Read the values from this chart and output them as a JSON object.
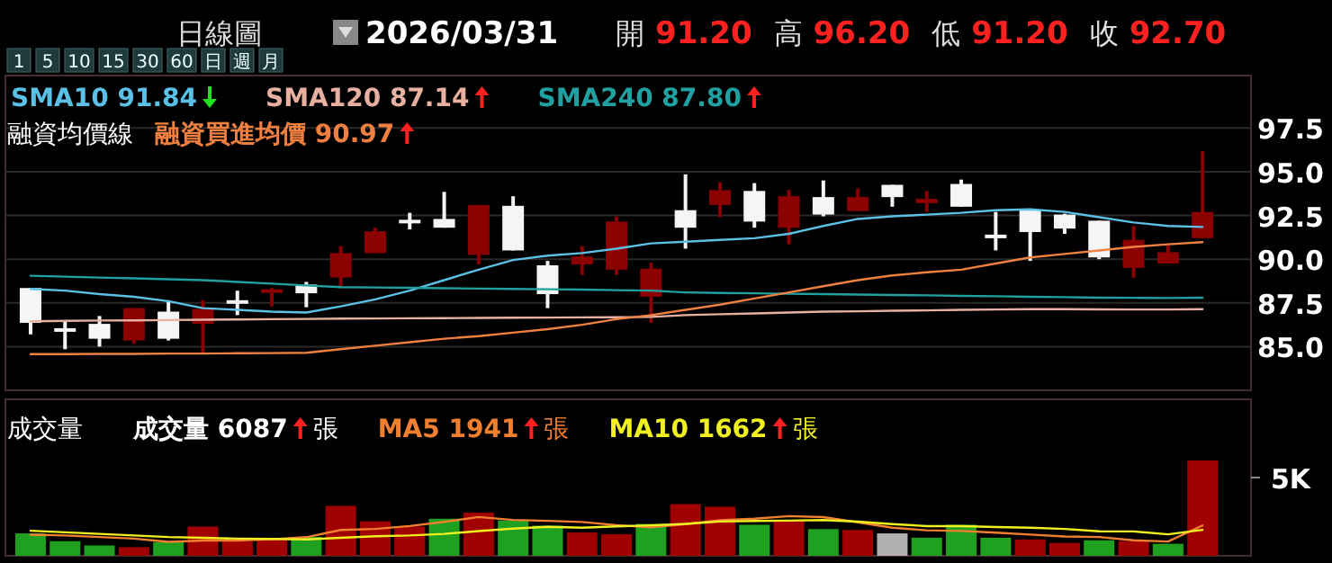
{
  "chart_data": [
    {
      "type": "candlestick",
      "categories": [
        null,
        null,
        null,
        null,
        null,
        null,
        null,
        null,
        null,
        null,
        null,
        null,
        null,
        null,
        null,
        null,
        null,
        null,
        null,
        null,
        null,
        null,
        null,
        null,
        null,
        null,
        null,
        null,
        null,
        null,
        null,
        null,
        null,
        null,
        null
      ],
      "ohlc": [
        [
          88.35,
          88.35,
          85.7,
          86.36
        ],
        [
          85.95,
          86.45,
          84.85,
          85.95
        ],
        [
          86.3,
          86.75,
          85.0,
          85.45
        ],
        [
          85.35,
          87.2,
          85.15,
          87.2
        ],
        [
          87.0,
          87.65,
          85.35,
          85.45
        ],
        [
          86.3,
          87.65,
          84.65,
          87.15
        ],
        [
          87.55,
          88.2,
          86.8,
          87.55
        ],
        [
          88.1,
          88.35,
          87.3,
          88.25
        ],
        [
          88.55,
          88.7,
          87.25,
          88.05
        ],
        [
          88.95,
          90.75,
          88.35,
          90.35
        ],
        [
          90.35,
          91.8,
          90.35,
          91.6
        ],
        [
          92.15,
          92.65,
          91.7,
          92.15
        ],
        [
          92.3,
          93.85,
          91.8,
          91.8
        ],
        [
          90.25,
          93.1,
          89.7,
          93.1
        ],
        [
          93.05,
          93.6,
          90.5,
          90.5
        ],
        [
          89.65,
          89.9,
          87.2,
          88.0
        ],
        [
          89.7,
          90.75,
          89.1,
          90.15
        ],
        [
          89.4,
          92.45,
          89.1,
          92.15
        ],
        [
          87.85,
          89.8,
          86.35,
          89.45
        ],
        [
          92.8,
          94.85,
          90.6,
          91.8
        ],
        [
          93.1,
          94.4,
          92.4,
          93.95
        ],
        [
          93.9,
          94.35,
          91.8,
          92.15
        ],
        [
          91.8,
          93.95,
          90.85,
          93.6
        ],
        [
          93.55,
          94.5,
          92.45,
          92.55
        ],
        [
          92.75,
          94.05,
          92.75,
          93.55
        ],
        [
          94.25,
          94.25,
          93.0,
          93.55
        ],
        [
          93.2,
          93.9,
          92.7,
          93.45
        ],
        [
          94.3,
          94.55,
          93.0,
          93.0
        ],
        [
          91.3,
          92.7,
          90.5,
          91.3
        ],
        [
          92.8,
          92.8,
          89.9,
          91.55
        ],
        [
          92.55,
          92.6,
          91.45,
          91.75
        ],
        [
          92.2,
          92.2,
          90.0,
          90.1
        ],
        [
          89.5,
          91.9,
          88.95,
          91.1
        ],
        [
          89.75,
          90.8,
          89.75,
          90.4
        ],
        [
          91.2,
          96.2,
          91.2,
          92.7
        ]
      ],
      "colors": [
        "#f5f5f5",
        "#f5f5f5",
        "#f5f5f5",
        "#8b0000",
        "#f5f5f5",
        "#8b0000",
        "#f5f5f5",
        "#8b0000",
        "#f5f5f5",
        "#8b0000",
        "#8b0000",
        "#f5f5f5",
        "#f5f5f5",
        "#8b0000",
        "#f5f5f5",
        "#f5f5f5",
        "#8b0000",
        "#8b0000",
        "#8b0000",
        "#f5f5f5",
        "#8b0000",
        "#f5f5f5",
        "#8b0000",
        "#f5f5f5",
        "#8b0000",
        "#f5f5f5",
        "#8b0000",
        "#f5f5f5",
        "#f5f5f5",
        "#f5f5f5",
        "#f5f5f5",
        "#f5f5f5",
        "#8b0000",
        "#8b0000",
        "#8b0000"
      ],
      "series": [
        {
          "type": "line",
          "name": "SMA10 91.84",
          "color": "#5bc0e6",
          "values": [
            88.3,
            88.2,
            88.0,
            87.85,
            87.6,
            87.2,
            87.1,
            87.0,
            86.95,
            87.3,
            87.7,
            88.2,
            88.8,
            89.4,
            89.95,
            90.2,
            90.35,
            90.6,
            90.9,
            91.0,
            91.1,
            91.2,
            91.45,
            91.9,
            92.3,
            92.45,
            92.55,
            92.65,
            92.8,
            92.85,
            92.7,
            92.4,
            92.1,
            91.9,
            91.84
          ]
        },
        {
          "type": "line",
          "name": "SMA120 87.14",
          "color": "#e8b0a0",
          "values": [
            86.45,
            86.47,
            86.49,
            86.5,
            86.52,
            86.54,
            86.55,
            86.57,
            86.58,
            86.6,
            86.61,
            86.62,
            86.63,
            86.64,
            86.65,
            86.66,
            86.67,
            86.68,
            86.7,
            86.8,
            86.85,
            86.9,
            86.95,
            87.0,
            87.02,
            87.05,
            87.07,
            87.1,
            87.12,
            87.14,
            87.14,
            87.13,
            87.12,
            87.12,
            87.14
          ]
        },
        {
          "type": "line",
          "name": "SMA240 87.80",
          "color": "#20a0a0",
          "values": [
            89.05,
            89.0,
            88.95,
            88.9,
            88.85,
            88.8,
            88.7,
            88.6,
            88.5,
            88.4,
            88.38,
            88.36,
            88.34,
            88.32,
            88.3,
            88.28,
            88.26,
            88.23,
            88.2,
            88.1,
            88.07,
            88.05,
            88.02,
            88.0,
            87.98,
            87.95,
            87.93,
            87.9,
            87.88,
            87.85,
            87.83,
            87.8,
            87.79,
            87.78,
            87.8
          ]
        },
        {
          "type": "line",
          "name": "融資買進均價 90.97",
          "color": "#f08040",
          "values": [
            84.57,
            84.57,
            84.58,
            84.58,
            84.6,
            84.6,
            84.62,
            84.63,
            84.65,
            84.85,
            85.05,
            85.25,
            85.45,
            85.6,
            85.8,
            86.0,
            86.25,
            86.57,
            86.8,
            87.1,
            87.4,
            87.75,
            88.1,
            88.45,
            88.8,
            89.07,
            89.25,
            89.4,
            89.75,
            90.1,
            90.3,
            90.5,
            90.7,
            90.85,
            90.97
          ]
        }
      ],
      "ylim": [
        82.5,
        100.5
      ],
      "yticks": [
        {
          "value": 85,
          "label": "85.0"
        },
        87.5,
        {
          "value": 90,
          "label": "90.0"
        },
        92.5,
        {
          "value": 95,
          "label": "95.0"
        },
        97.5
      ],
      "grid": "y",
      "legend": "top left",
      "tick_labels": "y",
      "annotations": [
        "日線圖",
        "2026/03/31",
        "開 91.20 高 96.20 低 91.20 收 92.70",
        "1 5 10 15 30 60 日 週 月",
        "融資均價線"
      ]
    },
    {
      "type": "bar",
      "categories": [
        null,
        null,
        null,
        null,
        null,
        null,
        null,
        null,
        null,
        null,
        null,
        null,
        null,
        null,
        null,
        null,
        null,
        null,
        null,
        null,
        null,
        null,
        null,
        null,
        null,
        null,
        null,
        null,
        null,
        null,
        null,
        null,
        null,
        null,
        null
      ],
      "series": [
        {
          "type": "bar",
          "name": "成交量 6087",
          "values": [
            1433,
            937,
            661,
            551,
            882,
            1873,
            937,
            1047,
            1212,
            3196,
            2204,
            1873,
            2369,
            2755,
            2259,
            1928,
            1488,
            1378,
            2039,
            3306,
            3141,
            1984,
            2204,
            1708,
            1653,
            1433,
            1157,
            1984,
            1157,
            1047,
            827,
            992,
            937,
            771,
            6087
          ],
          "colors": [
            "#20a020",
            "#20a020",
            "#20a020",
            "#a00000",
            "#20a020",
            "#a00000",
            "#a00000",
            "#a00000",
            "#20a020",
            "#a00000",
            "#a00000",
            "#a00000",
            "#20a020",
            "#a00000",
            "#20a020",
            "#20a020",
            "#a00000",
            "#a00000",
            "#20a020",
            "#a00000",
            "#a00000",
            "#20a020",
            "#a00000",
            "#20a020",
            "#a00000",
            "#b0b0b0",
            "#20a020",
            "#20a020",
            "#20a020",
            "#a00000",
            "#a00000",
            "#20a020",
            "#a00000",
            "#20a020",
            "#a00000"
          ]
        },
        {
          "type": "line",
          "name": "MA5 1941",
          "color": "#f08030",
          "values": [
            1350,
            1300,
            1200,
            1100,
            893,
            981,
            981,
            1058,
            1190,
            1653,
            1719,
            1906,
            2171,
            2479,
            2292,
            2237,
            2160,
            1962,
            1818,
            2028,
            2270,
            2370,
            2535,
            2469,
            2138,
            1796,
            1631,
            1587,
            1477,
            1356,
            1234,
            1201,
            992,
            915,
            1941
          ]
        },
        {
          "type": "line",
          "name": "MA10 1662",
          "color": "#f0f020",
          "values": [
            1600,
            1500,
            1400,
            1300,
            1200,
            1150,
            1100,
            1080,
            1050,
            1150,
            1250,
            1300,
            1400,
            1580,
            1740,
            1850,
            1800,
            1880,
            1950,
            2040,
            2190,
            2230,
            2250,
            2280,
            2180,
            2030,
            1900,
            1900,
            1840,
            1800,
            1720,
            1570,
            1560,
            1370,
            1662
          ]
        }
      ],
      "ylim": [
        0,
        10000
      ],
      "yticks": [
        {
          "value": 5000,
          "label": "5K"
        }
      ],
      "legend": "top left",
      "tick_labels": "y",
      "annotations": [
        "成交量",
        "張"
      ]
    }
  ]
}
